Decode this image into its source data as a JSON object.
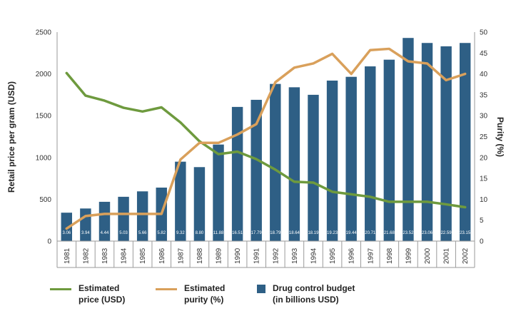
{
  "chart_data": {
    "type": "bar+line",
    "categories": [
      "1981",
      "1982",
      "1983",
      "1984",
      "1985",
      "1986",
      "1987",
      "1988",
      "1989",
      "1990",
      "1991",
      "1992",
      "1993",
      "1994",
      "1995",
      "1996",
      "1997",
      "1998",
      "1999",
      "2000",
      "2001",
      "2002"
    ],
    "ylabel_left": "Retail price per gram (USD)",
    "ylabel_right": "Purity (%)",
    "ylim_left": [
      0,
      2500
    ],
    "yticks_left": [
      0,
      500,
      1000,
      1500,
      2000,
      2500
    ],
    "ylim_right": [
      0,
      50
    ],
    "yticks_right": [
      0,
      5,
      10,
      15,
      20,
      25,
      30,
      35,
      40,
      45,
      50
    ],
    "grid": false,
    "legend_position": "bottom",
    "series": [
      {
        "name": "Drug control budget (in billions USD)",
        "legend_line1": "Drug control budget",
        "legend_line2": "(in billions USD)",
        "kind": "bar",
        "axis": "left",
        "color": "#2e5f85",
        "values": [
          340,
          390,
          470,
          530,
          595,
          640,
          950,
          885,
          1155,
          1605,
          1690,
          1880,
          1840,
          1750,
          1920,
          1965,
          2090,
          2170,
          2430,
          2370,
          2330,
          2370
        ],
        "labels": [
          "3.06",
          "3.94",
          "4.44",
          "5.03",
          "5.66",
          "5.82",
          "9.32",
          "8.80",
          "11.88",
          "16.51",
          "17.79",
          "18.79",
          "18.64",
          "18.19",
          "19.23",
          "19.44",
          "20.71",
          "21.68",
          "23.52",
          "23.06",
          "22.59",
          "23.15"
        ]
      },
      {
        "name": "Estimated price (USD)",
        "legend_line1": "Estimated",
        "legend_line2": "price (USD)",
        "kind": "line",
        "axis": "left",
        "color": "#6e9a3e",
        "values": [
          2010,
          1740,
          1680,
          1595,
          1550,
          1600,
          1420,
          1195,
          1040,
          1070,
          980,
          855,
          710,
          700,
          590,
          560,
          530,
          470,
          470,
          470,
          440,
          405
        ]
      },
      {
        "name": "Estimated purity (%)",
        "legend_line1": "Estimated",
        "legend_line2": "purity (%)",
        "kind": "line",
        "axis": "right",
        "color": "#d9a05b",
        "values": [
          3,
          6,
          6.5,
          6.5,
          6.5,
          6.5,
          19.5,
          23.5,
          23.5,
          25.5,
          28,
          38,
          41.5,
          42.5,
          44.8,
          40,
          45.7,
          46,
          43,
          42.5,
          38.5,
          40
        ]
      }
    ]
  }
}
